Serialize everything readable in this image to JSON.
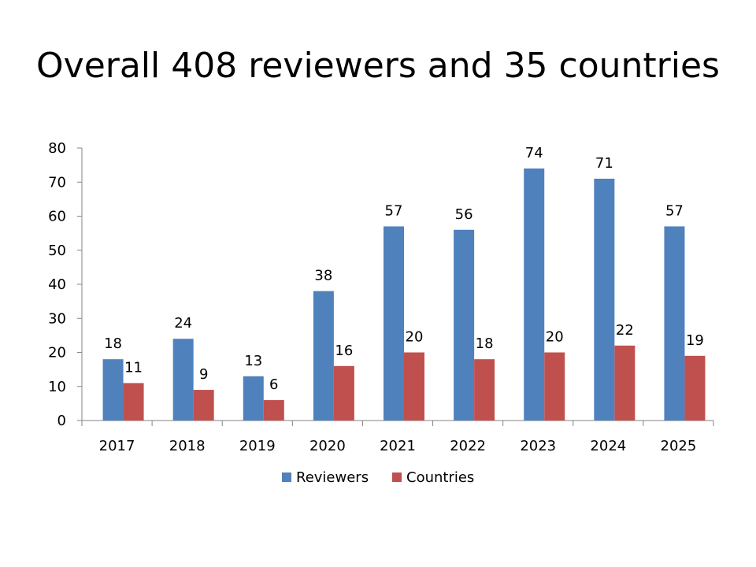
{
  "slide": {
    "title": "Overall 408 reviewers and 35 countries"
  },
  "chart_data": {
    "type": "bar",
    "title": "",
    "xlabel": "",
    "ylabel": "",
    "categories": [
      "2017",
      "2018",
      "2019",
      "2020",
      "2021",
      "2022",
      "2023",
      "2024",
      "2025"
    ],
    "series": [
      {
        "name": "Reviewers",
        "color": "#4F81BD",
        "values": [
          18,
          24,
          13,
          38,
          57,
          56,
          74,
          71,
          57
        ]
      },
      {
        "name": "Countries",
        "color": "#C0504D",
        "values": [
          11,
          9,
          6,
          16,
          20,
          18,
          20,
          22,
          19
        ]
      }
    ],
    "ylim": [
      0,
      80
    ],
    "yticks": [
      0,
      10,
      20,
      30,
      40,
      50,
      60,
      70,
      80
    ],
    "grid": false,
    "data_labels": true,
    "legend_position": "bottom"
  }
}
